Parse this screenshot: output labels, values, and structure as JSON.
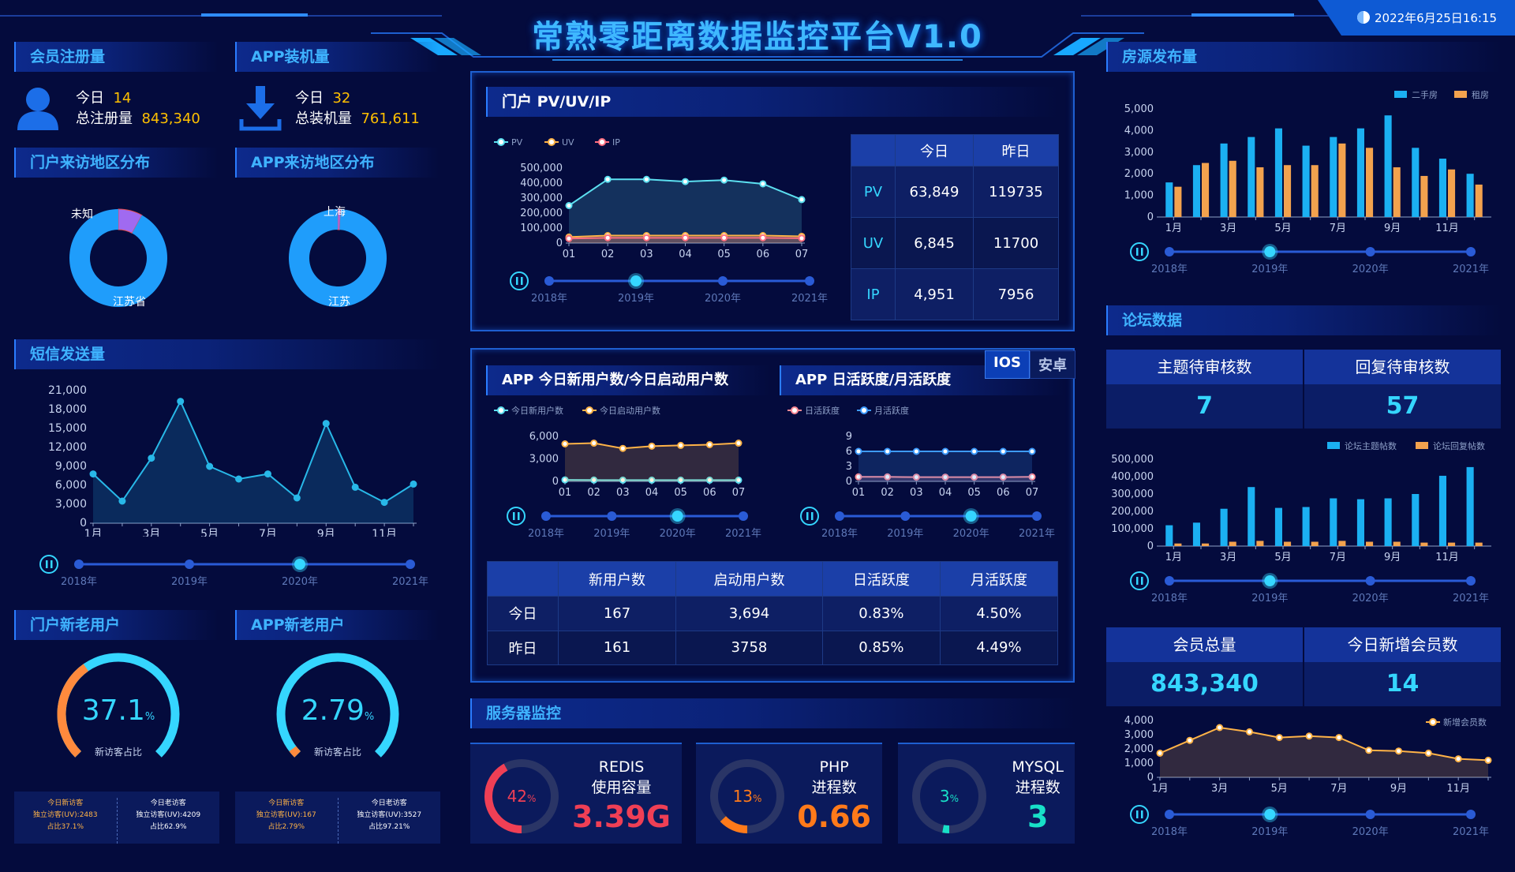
{
  "title": "常熟零距离数据监控平台V1.0",
  "datetime": "2022年6月25日16:15",
  "years": [
    "2018年",
    "2019年",
    "2020年",
    "2021年"
  ],
  "member_reg": {
    "title": "会员注册量",
    "today_label": "今日",
    "today": "14",
    "total_label": "总注册量",
    "total": "843,340"
  },
  "app_install": {
    "title": "APP装机量",
    "today_label": "今日",
    "today": "32",
    "total_label": "总装机量",
    "total": "761,611"
  },
  "portal_region": {
    "title": "门户来访地区分布",
    "labels": [
      "未知",
      "江苏省"
    ],
    "values": [
      8,
      92
    ]
  },
  "app_region": {
    "title": "APP来访地区分布",
    "labels": [
      "上海",
      "江苏"
    ],
    "values": [
      1,
      99
    ]
  },
  "sms": {
    "title": "短信发送量"
  },
  "portal_users": {
    "title": "门户新老用户",
    "pct": "37.1",
    "unit": "%",
    "caption": "新访客占比",
    "new": {
      "h": "今日新访客",
      "l1": "独立访客(UV):2483",
      "l2": "占比37.1%"
    },
    "old": {
      "h": "今日老访客",
      "l1": "独立访客(UV):4209",
      "l2": "占比62.9%"
    }
  },
  "app_users": {
    "title": "APP新老用户",
    "pct": "2.79",
    "unit": "%",
    "caption": "新访客占比",
    "new": {
      "h": "今日新访客",
      "l1": "独立访客(UV):167",
      "l2": "占比2.79%"
    },
    "old": {
      "h": "今日老访客",
      "l1": "独立访客(UV):3527",
      "l2": "占比97.21%"
    }
  },
  "pv": {
    "title": "门户 PV/UV/IP",
    "table": {
      "headers": [
        "今日",
        "昨日"
      ],
      "rows": [
        [
          "PV",
          "63,849",
          "119735"
        ],
        [
          "UV",
          "6,845",
          "11700"
        ],
        [
          "IP",
          "4,951",
          "7956"
        ]
      ]
    }
  },
  "app_new": {
    "title": "APP 今日新用户数/今日启动用户数"
  },
  "app_active": {
    "title": "APP 日活跃度/月活跃度",
    "tabs": [
      "IOS",
      "安卓"
    ]
  },
  "app_table": {
    "headers": [
      "",
      "新用户数",
      "启动用户数",
      "日活跃度",
      "月活跃度"
    ],
    "rows": [
      [
        "今日",
        "167",
        "3,694",
        "0.83%",
        "4.50%"
      ],
      [
        "昨日",
        "161",
        "3758",
        "0.85%",
        "4.49%"
      ]
    ]
  },
  "server": {
    "title": "服务器监控",
    "items": [
      {
        "name": "REDIS",
        "sub": "使用容量",
        "pct": 42,
        "pct_label": "42",
        "value": "3.39G",
        "color": "#ef3f55"
      },
      {
        "name": "PHP",
        "sub": "进程数",
        "pct": 13,
        "pct_label": "13",
        "value": "0.66",
        "color": "#ff7a1a"
      },
      {
        "name": "MYSQL",
        "sub": "进程数",
        "pct": 3,
        "pct_label": "3",
        "value": "3",
        "color": "#18e0c8"
      }
    ]
  },
  "house": {
    "title": "房源发布量"
  },
  "forum": {
    "title": "论坛数据",
    "h1": "主题待审核数",
    "h2": "回复待审核数",
    "v1": "7",
    "v2": "57"
  },
  "member": {
    "h1": "会员总量",
    "h2": "今日新增会员数",
    "v1": "843,340",
    "v2": "14"
  },
  "chart_data": [
    {
      "id": "pv",
      "type": "line",
      "x": [
        "01",
        "02",
        "03",
        "04",
        "05",
        "06",
        "07"
      ],
      "ylim": [
        0,
        500000
      ],
      "yticks": [
        "0",
        "100,000",
        "200,000",
        "300,000",
        "400,000",
        "500,000"
      ],
      "series": [
        {
          "name": "PV",
          "color": "#5ce0f0",
          "values": [
            250000,
            425000,
            425000,
            410000,
            420000,
            395000,
            290000
          ]
        },
        {
          "name": "UV",
          "color": "#ffb347",
          "values": [
            40000,
            50000,
            50000,
            50000,
            50000,
            50000,
            45000
          ]
        },
        {
          "name": "IP",
          "color": "#ff6f80",
          "values": [
            30000,
            35000,
            35000,
            35000,
            35000,
            35000,
            32000
          ]
        }
      ]
    },
    {
      "id": "sms",
      "type": "line",
      "x": [
        "1月",
        "2月",
        "3月",
        "4月",
        "5月",
        "6月",
        "7月",
        "8月",
        "9月",
        "10月",
        "11月",
        "12月"
      ],
      "xticks": [
        "1月",
        "3月",
        "5月",
        "7月",
        "9月",
        "11月"
      ],
      "ylim": [
        0,
        21000
      ],
      "yticks": [
        "0",
        "3,000",
        "6,000",
        "9,000",
        "12,000",
        "15,000",
        "18,000",
        "21,000"
      ],
      "series": [
        {
          "name": "",
          "color": "#28b8e8",
          "values": [
            7800,
            3500,
            10300,
            19300,
            9000,
            7000,
            7800,
            4000,
            15800,
            5700,
            3300,
            6200
          ]
        }
      ]
    },
    {
      "id": "app_new",
      "type": "line",
      "x": [
        "01",
        "02",
        "03",
        "04",
        "05",
        "06",
        "07"
      ],
      "ylim": [
        0,
        6000
      ],
      "yticks": [
        "0",
        "3,000",
        "6,000"
      ],
      "series": [
        {
          "name": "今日新用户数",
          "color": "#5ce0f0",
          "values": [
            200,
            180,
            170,
            170,
            170,
            170,
            170
          ]
        },
        {
          "name": "今日启动用户数",
          "color": "#ffb347",
          "values": [
            5000,
            5100,
            4400,
            4700,
            4800,
            4900,
            5100
          ]
        }
      ]
    },
    {
      "id": "app_active",
      "type": "line",
      "x": [
        "01",
        "02",
        "03",
        "04",
        "05",
        "06",
        "07"
      ],
      "ylim": [
        0,
        9
      ],
      "yticks": [
        "0",
        "3",
        "6",
        "9"
      ],
      "series": [
        {
          "name": "日活跃度",
          "color": "#ff8a95",
          "values": [
            0.9,
            0.9,
            0.85,
            0.85,
            0.85,
            0.85,
            0.9
          ]
        },
        {
          "name": "月活跃度",
          "color": "#3d9bff",
          "values": [
            6,
            6,
            6,
            6,
            6,
            6,
            6
          ]
        }
      ]
    },
    {
      "id": "house",
      "type": "bar",
      "x": [
        "1月",
        "2月",
        "3月",
        "4月",
        "5月",
        "6月",
        "7月",
        "8月",
        "9月",
        "10月",
        "11月",
        "12月"
      ],
      "xticks": [
        "1月",
        "3月",
        "5月",
        "7月",
        "9月",
        "11月"
      ],
      "ylim": [
        0,
        5000
      ],
      "yticks": [
        "0",
        "1,000",
        "2,000",
        "3,000",
        "4,000",
        "5,000"
      ],
      "series": [
        {
          "name": "二手房",
          "color": "#1bb0f2",
          "values": [
            1600,
            2400,
            3400,
            3700,
            4100,
            3300,
            3700,
            4100,
            4700,
            3200,
            2700,
            2000
          ]
        },
        {
          "name": "租房",
          "color": "#f3a24e",
          "values": [
            1400,
            2500,
            2600,
            2300,
            2400,
            2400,
            3400,
            3200,
            2300,
            1900,
            2200,
            1500
          ]
        }
      ]
    },
    {
      "id": "forum",
      "type": "bar",
      "x": [
        "1月",
        "2月",
        "3月",
        "4月",
        "5月",
        "6月",
        "7月",
        "8月",
        "9月",
        "10月",
        "11月",
        "12月"
      ],
      "xticks": [
        "1月",
        "3月",
        "5月",
        "7月",
        "9月",
        "11月"
      ],
      "ylim": [
        0,
        500000
      ],
      "yticks": [
        "0",
        "100,000",
        "200,000",
        "300,000",
        "400,000",
        "500,000"
      ],
      "series": [
        {
          "name": "论坛主题帖数",
          "color": "#1bb0f2",
          "values": [
            120000,
            135000,
            215000,
            340000,
            220000,
            225000,
            275000,
            270000,
            275000,
            300000,
            405000,
            455000
          ]
        },
        {
          "name": "论坛回复帖数",
          "color": "#f3a24e",
          "values": [
            15000,
            15000,
            25000,
            30000,
            25000,
            25000,
            30000,
            25000,
            25000,
            20000,
            20000,
            20000
          ]
        }
      ]
    },
    {
      "id": "member",
      "type": "line",
      "x": [
        "1月",
        "2月",
        "3月",
        "4月",
        "5月",
        "6月",
        "7月",
        "8月",
        "9月",
        "10月",
        "11月",
        "12月"
      ],
      "xticks": [
        "1月",
        "3月",
        "5月",
        "7月",
        "9月",
        "11月"
      ],
      "ylim": [
        0,
        4000
      ],
      "yticks": [
        "0",
        "1,000",
        "2,000",
        "3,000",
        "4,000"
      ],
      "series": [
        {
          "name": "新增会员数",
          "color": "#ffb347",
          "values": [
            1700,
            2600,
            3500,
            3200,
            2800,
            2900,
            2800,
            1900,
            1850,
            1700,
            1300,
            1200
          ]
        }
      ]
    }
  ]
}
